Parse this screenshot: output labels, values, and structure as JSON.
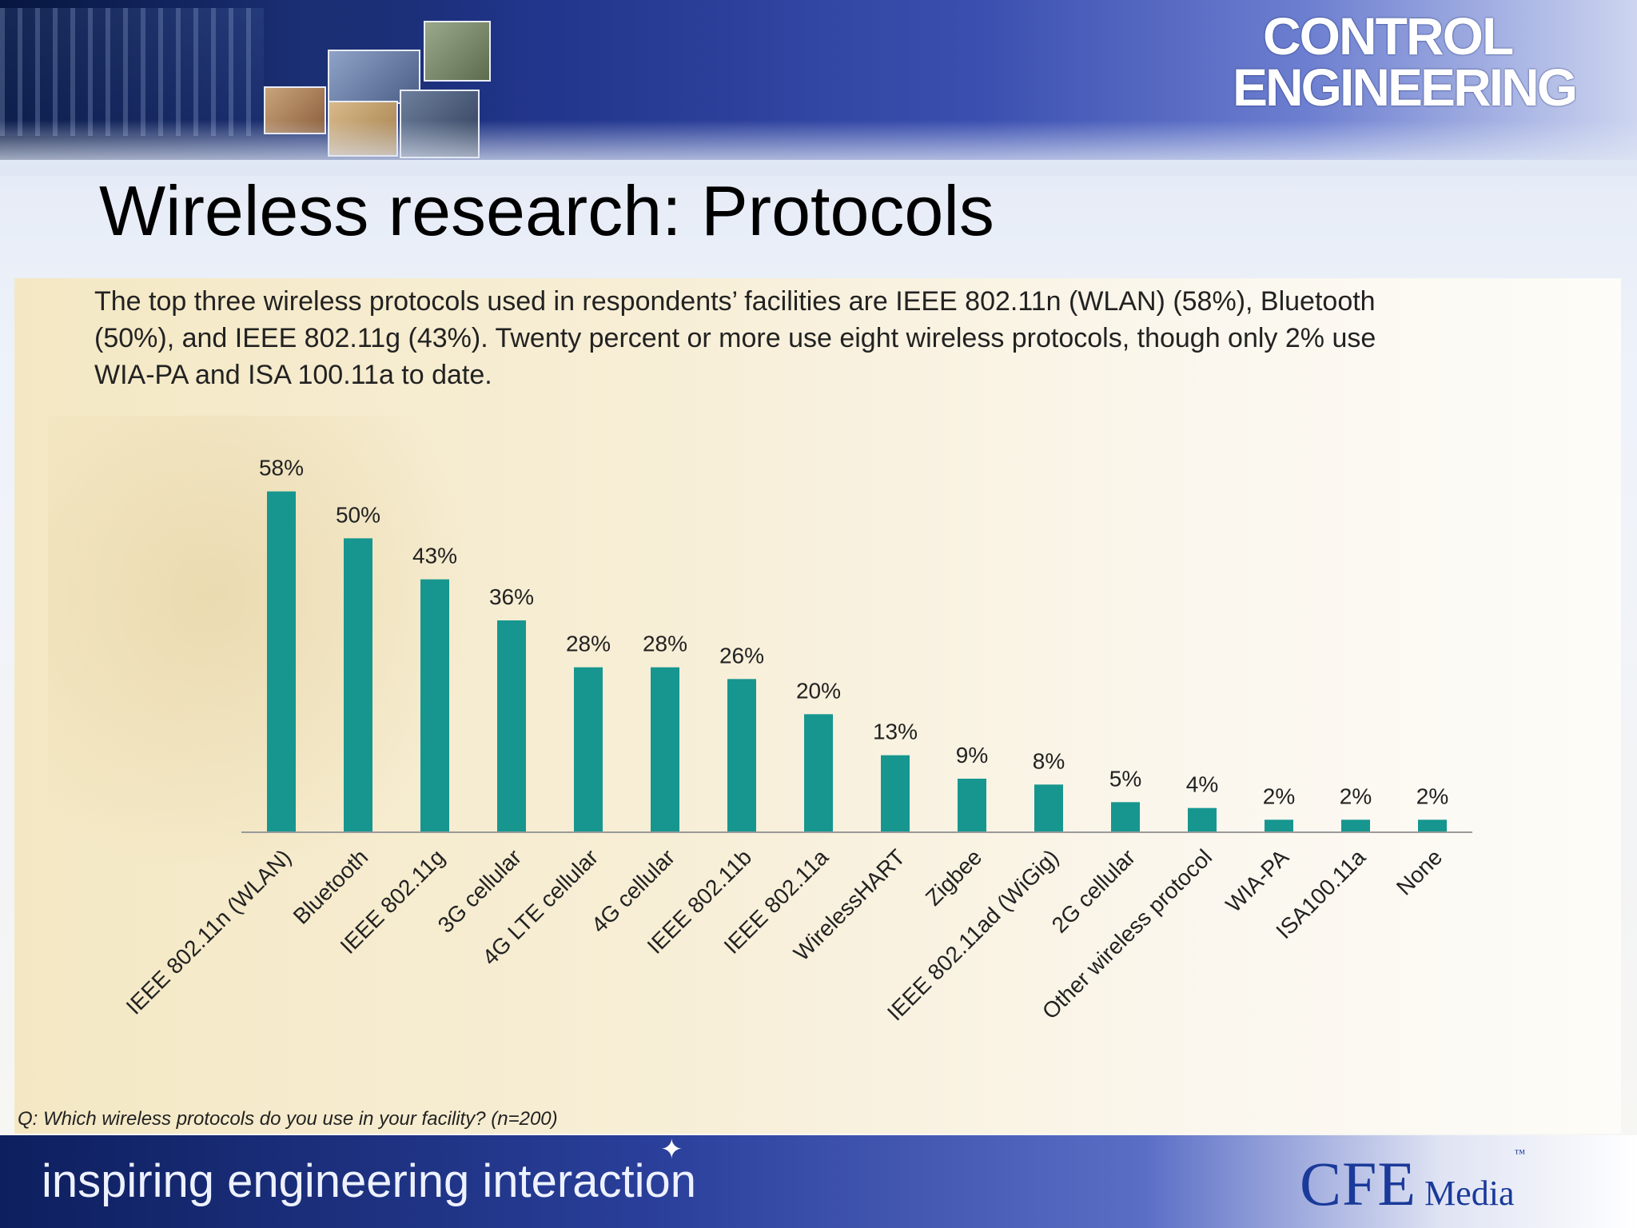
{
  "slide": {
    "title": "Wireless research: Protocols",
    "description": "The top three wireless protocols used in respondents’ facilities are IEEE 802.11n (WLAN) (58%), Bluetooth (50%), and IEEE 802.11g (43%). Twenty percent or more use eight wireless protocols, though only 2% use WIA-PA and ISA 100.11a to date.",
    "question": "Q: Which wireless protocols do you use in your facility? (n=200)",
    "tagline": "inspiring engineering interaction"
  },
  "logo": {
    "line1": "CONTROL",
    "line2": "ENGINEERING"
  },
  "footer_brand": {
    "name": "CFE",
    "suffix": "Media",
    "trademark": "™"
  },
  "colors": {
    "bar": "#16968f",
    "axis": "#9a9a9a",
    "text": "#222222"
  },
  "chart_data": {
    "type": "bar",
    "title": "",
    "xlabel": "",
    "ylabel": "",
    "ylim": [
      0,
      60
    ],
    "grid": false,
    "value_suffix": "%",
    "categories": [
      "IEEE 802.11n (WLAN)",
      "Bluetooth",
      "IEEE 802.11g",
      "3G cellular",
      "4G LTE cellular",
      "4G cellular",
      "IEEE 802.11b",
      "IEEE 802.11a",
      "WirelessHART",
      "Zigbee",
      "IEEE 802.11ad (WiGig)",
      "2G cellular",
      "Other wireless protocol",
      "WIA-PA",
      "ISA100.11a",
      "None"
    ],
    "values": [
      58,
      50,
      43,
      36,
      28,
      28,
      26,
      20,
      13,
      9,
      8,
      5,
      4,
      2,
      2,
      2
    ]
  }
}
